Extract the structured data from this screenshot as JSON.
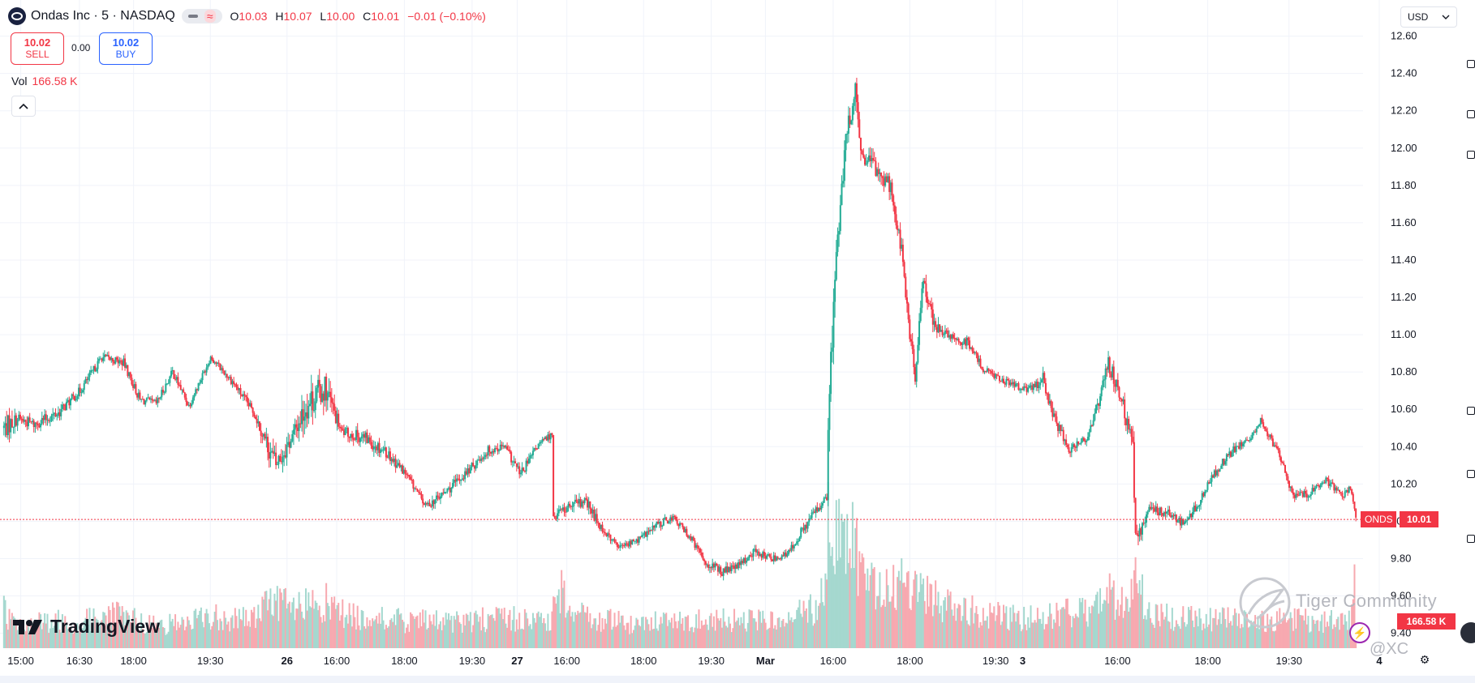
{
  "header": {
    "symbol_title": "Ondas Inc · 5 · NASDAQ",
    "ohlc": {
      "o_label": "O",
      "o_value": "10.03",
      "h_label": "H",
      "h_value": "10.07",
      "l_label": "L",
      "l_value": "10.00",
      "c_label": "C",
      "c_value": "10.01",
      "change": "−0.01 (−0.10%)"
    }
  },
  "trade": {
    "sell_price": "10.02",
    "sell_label": "SELL",
    "spread": "0.00",
    "buy_price": "10.02",
    "buy_label": "BUY"
  },
  "volume_legend": {
    "label": "Vol",
    "value": "166.58 K"
  },
  "currency": {
    "selected": "USD"
  },
  "branding": {
    "logo_text": "TradingView",
    "watermark": "Tiger Community",
    "watermark_handle": "@XC"
  },
  "price_tags": {
    "symbol": "ONDS",
    "last_price": "10.01",
    "volume": "166.58 K"
  },
  "colors": {
    "up": "#22ab94",
    "down": "#f23645",
    "up_volume": "#a5d8cf",
    "down_volume": "#f7a9b0",
    "grid": "#f0f3fa",
    "price_line": "#f23645"
  },
  "icons": {
    "symbol_logo": "ondas-logo-icon",
    "collapse": "chevron-up-icon",
    "currency_dropdown": "chevron-down-icon",
    "bolt": "lightning-icon",
    "settings": "gear-icon"
  },
  "chart_data": {
    "type": "candlestick",
    "symbol": "ONDS",
    "interval": "5",
    "y_ticks": [
      9.4,
      9.6,
      9.8,
      10.0,
      10.2,
      10.4,
      10.6,
      10.8,
      11.0,
      11.2,
      11.4,
      11.6,
      11.8,
      12.0,
      12.2,
      12.4,
      12.6
    ],
    "y_range": [
      9.32,
      12.62
    ],
    "grid": true,
    "x_ticks": [
      "15:00",
      "16:30",
      "18:00",
      "19:30",
      "26",
      "16:00",
      "18:00",
      "19:30",
      "27",
      "16:00",
      "18:00",
      "19:30",
      "Mar",
      "16:00",
      "18:00",
      "19:30",
      "3",
      "16:00",
      "18:00",
      "19:30",
      "4"
    ],
    "last_price": 10.01,
    "last_volume": "166.58 K",
    "anchors": [
      [
        0,
        10.5,
        10.8,
        10.38,
        0.3
      ],
      [
        10,
        10.55,
        10.65,
        10.44,
        0.18
      ],
      [
        22,
        10.52,
        10.62,
        10.42,
        0.2
      ],
      [
        40,
        10.58,
        10.7,
        10.5,
        0.22
      ],
      [
        56,
        10.7,
        10.78,
        10.62,
        0.2
      ],
      [
        72,
        10.88,
        10.94,
        10.8,
        0.28
      ],
      [
        88,
        10.85,
        10.95,
        10.8,
        0.26
      ],
      [
        100,
        10.65,
        10.75,
        10.58,
        0.22
      ],
      [
        112,
        10.63,
        10.72,
        10.58,
        0.18
      ],
      [
        124,
        10.8,
        10.86,
        10.7,
        0.2
      ],
      [
        136,
        10.62,
        10.7,
        10.56,
        0.22
      ],
      [
        152,
        10.88,
        10.9,
        10.78,
        0.26
      ],
      [
        168,
        10.75,
        10.82,
        10.66,
        0.24
      ],
      [
        184,
        10.58,
        10.64,
        10.48,
        0.25
      ],
      [
        200,
        10.3,
        10.4,
        9.95,
        0.42
      ],
      [
        212,
        10.45,
        10.58,
        10.28,
        0.3
      ],
      [
        222,
        10.62,
        10.7,
        10.1,
        0.34
      ],
      [
        236,
        10.72,
        10.8,
        10.3,
        0.38
      ],
      [
        248,
        10.48,
        10.58,
        10.4,
        0.28
      ],
      [
        264,
        10.45,
        10.55,
        10.32,
        0.25
      ],
      [
        280,
        10.38,
        10.48,
        10.25,
        0.24
      ],
      [
        296,
        10.25,
        10.32,
        10.18,
        0.22
      ],
      [
        310,
        10.08,
        10.16,
        10.02,
        0.22
      ],
      [
        324,
        10.15,
        10.22,
        10.04,
        0.22
      ],
      [
        340,
        10.26,
        10.34,
        10.18,
        0.22
      ],
      [
        356,
        10.38,
        10.46,
        10.3,
        0.24
      ],
      [
        368,
        10.4,
        10.48,
        10.32,
        0.24
      ],
      [
        380,
        10.25,
        10.36,
        10.18,
        0.24
      ],
      [
        392,
        10.4,
        10.48,
        10.34,
        0.22
      ],
      [
        403,
        10.47,
        10.52,
        10.4,
        0.22
      ],
      [
        404,
        10.03,
        10.12,
        9.9,
        0.62
      ],
      [
        416,
        10.08,
        10.16,
        9.98,
        0.32
      ],
      [
        428,
        10.1,
        10.18,
        9.96,
        0.26
      ],
      [
        440,
        9.96,
        10.04,
        9.88,
        0.24
      ],
      [
        452,
        9.86,
        9.92,
        9.82,
        0.22
      ],
      [
        466,
        9.9,
        9.96,
        9.84,
        0.2
      ],
      [
        480,
        9.98,
        10.06,
        9.9,
        0.22
      ],
      [
        492,
        10.02,
        10.06,
        9.94,
        0.22
      ],
      [
        504,
        9.92,
        9.98,
        9.86,
        0.22
      ],
      [
        516,
        9.78,
        9.86,
        9.7,
        0.24
      ],
      [
        528,
        9.73,
        9.8,
        9.65,
        0.24
      ],
      [
        540,
        9.76,
        9.82,
        9.68,
        0.22
      ],
      [
        552,
        9.84,
        9.9,
        9.76,
        0.22
      ],
      [
        564,
        9.8,
        9.86,
        9.74,
        0.22
      ],
      [
        576,
        9.82,
        9.88,
        9.76,
        0.24
      ],
      [
        586,
        9.94,
        10.02,
        9.86,
        0.28
      ],
      [
        596,
        10.05,
        10.12,
        9.96,
        0.32
      ],
      [
        605,
        10.12,
        10.2,
        10.02,
        0.52
      ],
      [
        606,
        10.5,
        11.4,
        10.48,
        0.95
      ],
      [
        612,
        11.45,
        11.75,
        11.3,
        1.0
      ],
      [
        620,
        12.1,
        12.2,
        11.8,
        0.9
      ],
      [
        626,
        12.3,
        12.42,
        12.05,
        0.85
      ],
      [
        630,
        11.95,
        12.0,
        11.65,
        0.6
      ],
      [
        640,
        11.9,
        12.02,
        11.72,
        0.5
      ],
      [
        652,
        11.8,
        11.9,
        11.6,
        0.48
      ],
      [
        660,
        11.45,
        11.55,
        11.3,
        0.52
      ],
      [
        666,
        11.0,
        11.1,
        10.8,
        0.55
      ],
      [
        670,
        10.78,
        10.95,
        10.72,
        0.5
      ],
      [
        676,
        11.3,
        11.45,
        11.18,
        0.45
      ],
      [
        684,
        11.05,
        11.2,
        10.95,
        0.4
      ],
      [
        696,
        10.98,
        11.05,
        10.88,
        0.36
      ],
      [
        708,
        10.96,
        11.02,
        10.86,
        0.32
      ],
      [
        720,
        10.82,
        10.9,
        10.76,
        0.28
      ],
      [
        736,
        10.75,
        10.82,
        10.7,
        0.26
      ],
      [
        752,
        10.7,
        10.76,
        10.64,
        0.25
      ],
      [
        764,
        10.76,
        10.84,
        10.6,
        0.26
      ],
      [
        772,
        10.55,
        10.64,
        10.44,
        0.26
      ],
      [
        784,
        10.38,
        10.46,
        10.3,
        0.3
      ],
      [
        796,
        10.45,
        10.52,
        10.38,
        0.3
      ],
      [
        804,
        10.62,
        10.74,
        10.52,
        0.4
      ],
      [
        812,
        10.85,
        11.0,
        10.7,
        0.44
      ],
      [
        822,
        10.65,
        10.78,
        10.55,
        0.4
      ],
      [
        830,
        10.38,
        10.56,
        10.2,
        0.4
      ],
      [
        832,
        9.9,
        10.1,
        9.78,
        0.55
      ],
      [
        842,
        10.06,
        10.15,
        9.98,
        0.32
      ],
      [
        856,
        10.05,
        10.13,
        9.96,
        0.26
      ],
      [
        868,
        9.98,
        10.06,
        9.92,
        0.24
      ],
      [
        880,
        10.12,
        10.2,
        10.04,
        0.24
      ],
      [
        892,
        10.28,
        10.36,
        10.2,
        0.24
      ],
      [
        904,
        10.38,
        10.44,
        10.3,
        0.24
      ],
      [
        916,
        10.44,
        10.5,
        10.38,
        0.22
      ],
      [
        924,
        10.54,
        10.58,
        10.46,
        0.22
      ],
      [
        936,
        10.38,
        10.45,
        10.3,
        0.24
      ],
      [
        948,
        10.14,
        10.22,
        10.08,
        0.24
      ],
      [
        960,
        10.15,
        10.22,
        10.08,
        0.22
      ],
      [
        972,
        10.22,
        10.27,
        10.15,
        0.22
      ],
      [
        984,
        10.14,
        10.2,
        10.08,
        0.22
      ],
      [
        990,
        10.18,
        10.22,
        10.1,
        0.22
      ],
      [
        994,
        10.02,
        10.07,
        10.0,
        0.62
      ]
    ]
  }
}
